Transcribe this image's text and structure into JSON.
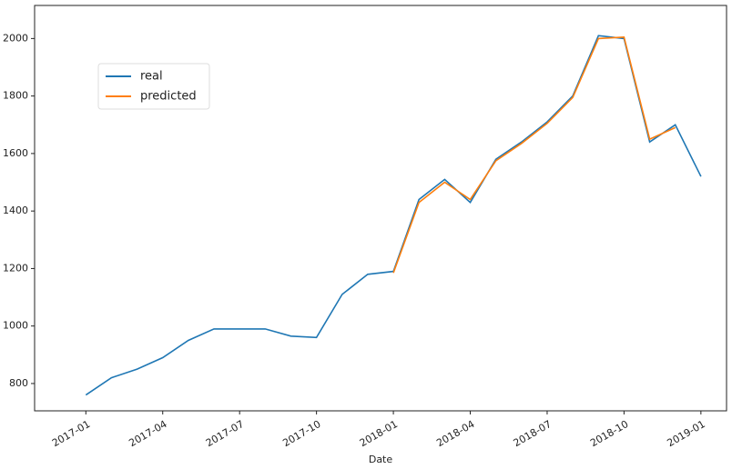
{
  "chart_data": {
    "type": "line",
    "xlabel": "Date",
    "x": [
      "2017-01",
      "2017-02",
      "2017-03",
      "2017-04",
      "2017-05",
      "2017-06",
      "2017-07",
      "2017-08",
      "2017-09",
      "2017-10",
      "2017-11",
      "2017-12",
      "2018-01",
      "2018-02",
      "2018-03",
      "2018-04",
      "2018-05",
      "2018-06",
      "2018-07",
      "2018-08",
      "2018-09",
      "2018-10",
      "2018-11",
      "2018-12",
      "2019-01"
    ],
    "series": [
      {
        "name": "real",
        "color": "#1f77b4",
        "values": [
          760,
          820,
          850,
          890,
          950,
          990,
          990,
          990,
          965,
          960,
          1110,
          1180,
          1190,
          1440,
          1510,
          1430,
          1580,
          1640,
          1710,
          1800,
          2010,
          2000,
          1640,
          1700,
          1520
        ]
      },
      {
        "name": "predicted",
        "color": "#ff7f0e",
        "values": [
          null,
          null,
          null,
          null,
          null,
          null,
          null,
          null,
          null,
          null,
          null,
          null,
          1185,
          1430,
          1500,
          1440,
          1575,
          1635,
          1705,
          1795,
          2000,
          2005,
          1650,
          1690,
          null
        ]
      }
    ],
    "xlim": [
      "2016-11",
      "2019-02"
    ],
    "xticks": [
      "2017-01",
      "2017-04",
      "2017-07",
      "2017-10",
      "2018-01",
      "2018-04",
      "2018-07",
      "2018-10",
      "2019-01"
    ],
    "ylim": [
      705,
      2115
    ],
    "yticks": [
      800,
      1000,
      1200,
      1400,
      1600,
      1800,
      2000
    ],
    "legend": "upper left"
  }
}
